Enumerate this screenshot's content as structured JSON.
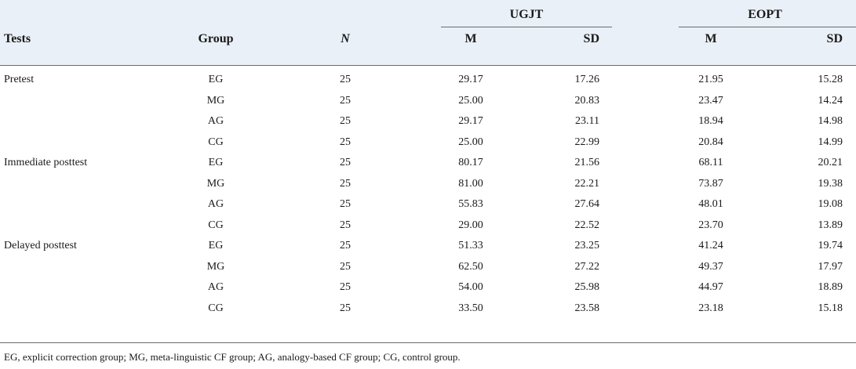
{
  "header": {
    "tests": "Tests",
    "group": "Group",
    "n": "N",
    "ugjt": "UGJT",
    "eopt": "EOPT",
    "m": "M",
    "sd": "SD"
  },
  "rows": [
    {
      "test": "Pretest",
      "group": "EG",
      "n": "25",
      "ugjt_m": "29.17",
      "ugjt_sd": "17.26",
      "eopt_m": "21.95",
      "eopt_sd": "15.28"
    },
    {
      "test": "",
      "group": "MG",
      "n": "25",
      "ugjt_m": "25.00",
      "ugjt_sd": "20.83",
      "eopt_m": "23.47",
      "eopt_sd": "14.24"
    },
    {
      "test": "",
      "group": "AG",
      "n": "25",
      "ugjt_m": "29.17",
      "ugjt_sd": "23.11",
      "eopt_m": "18.94",
      "eopt_sd": "14.98"
    },
    {
      "test": "",
      "group": "CG",
      "n": "25",
      "ugjt_m": "25.00",
      "ugjt_sd": "22.99",
      "eopt_m": "20.84",
      "eopt_sd": "14.99"
    },
    {
      "test": "Immediate posttest",
      "group": "EG",
      "n": "25",
      "ugjt_m": "80.17",
      "ugjt_sd": "21.56",
      "eopt_m": "68.11",
      "eopt_sd": "20.21"
    },
    {
      "test": "",
      "group": "MG",
      "n": "25",
      "ugjt_m": "81.00",
      "ugjt_sd": "22.21",
      "eopt_m": "73.87",
      "eopt_sd": "19.38"
    },
    {
      "test": "",
      "group": "AG",
      "n": "25",
      "ugjt_m": "55.83",
      "ugjt_sd": "27.64",
      "eopt_m": "48.01",
      "eopt_sd": "19.08"
    },
    {
      "test": "",
      "group": "CG",
      "n": "25",
      "ugjt_m": "29.00",
      "ugjt_sd": "22.52",
      "eopt_m": "23.70",
      "eopt_sd": "13.89"
    },
    {
      "test": "Delayed posttest",
      "group": "EG",
      "n": "25",
      "ugjt_m": "51.33",
      "ugjt_sd": "23.25",
      "eopt_m": "41.24",
      "eopt_sd": "19.74"
    },
    {
      "test": "",
      "group": "MG",
      "n": "25",
      "ugjt_m": "62.50",
      "ugjt_sd": "27.22",
      "eopt_m": "49.37",
      "eopt_sd": "17.97"
    },
    {
      "test": "",
      "group": "AG",
      "n": "25",
      "ugjt_m": "54.00",
      "ugjt_sd": "25.98",
      "eopt_m": "44.97",
      "eopt_sd": "18.89"
    },
    {
      "test": "",
      "group": "CG",
      "n": "25",
      "ugjt_m": "33.50",
      "ugjt_sd": "23.58",
      "eopt_m": "23.18",
      "eopt_sd": "15.18"
    }
  ],
  "footnote": "EG, explicit correction group; MG, meta-linguistic CF group; AG, analogy-based CF group; CG, control group."
}
